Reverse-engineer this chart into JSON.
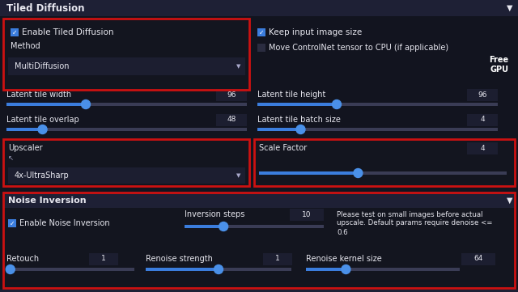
{
  "bg_color": "#16182a",
  "panel_bg": "#1a1c2e",
  "section_bg": "#12141f",
  "titlebar_bg": "#1e2035",
  "dropdown_bg": "#1c1e30",
  "value_box_bg": "#1c1e30",
  "text_color": "#e8e8f0",
  "text_dim": "#aaaacc",
  "slider_track_color": "#3a3c55",
  "slider_fill_color": "#3b7ddd",
  "slider_handle_color": "#4a90e8",
  "red_border": "#cc1111",
  "checkbox_fill": "#3b7ddd",
  "title": "Tiled Diffusion",
  "section2_title": "Noise Inversion",
  "enable_tiled": "Enable Tiled Diffusion",
  "method_label": "Method",
  "dropdown_text": "MultiDiffusion",
  "keep_input": "Keep input image size",
  "move_controlnet": "Move ControlNet tensor to CPU (if applicable)",
  "free_gpu": "Free\nGPU",
  "lat_tile_w": "Latent tile width",
  "lat_tile_h": "Latent tile height",
  "lat_tile_overlap": "Latent tile overlap",
  "lat_tile_batch": "Latent tile batch size",
  "upscaler_label": "Upscaler",
  "upscaler_val": "4x-UltraSharp",
  "scale_factor_label": "Scale Factor",
  "noise_inv_label": "Noise Inversion",
  "enable_noise": "Enable Noise Inversion",
  "inv_steps_label": "Inversion steps",
  "please_test_1": "Please test on small images before actual",
  "please_test_2": "upscale. Default params require denoise <=",
  "please_test_3": "0.6",
  "retouch_label": "Retouch",
  "renoise_str_label": "Renoise strength",
  "renoise_ker_label": "Renoise kernel size",
  "val_96a": "96",
  "val_96b": "96",
  "val_48": "48",
  "val_4a": "4",
  "val_4b": "4",
  "val_10": "10",
  "val_1a": "1",
  "val_1b": "1",
  "val_64": "64"
}
